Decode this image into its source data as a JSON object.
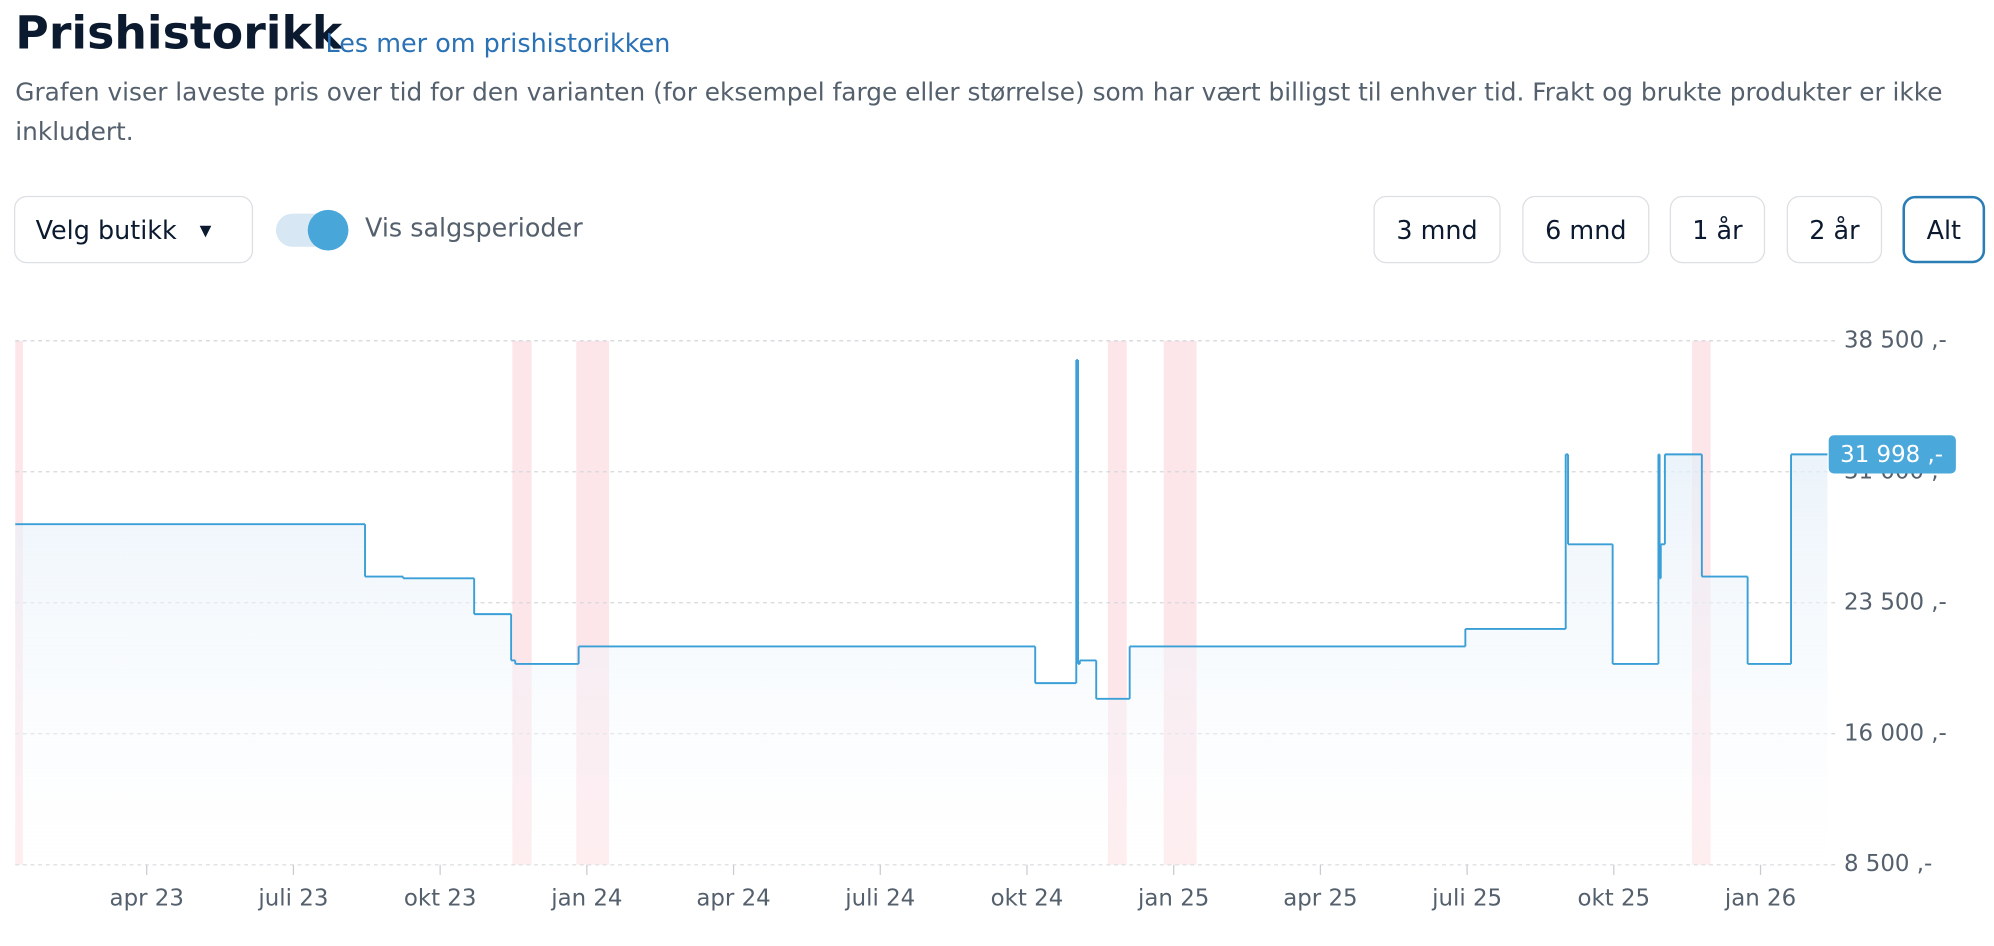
{
  "header": {
    "title": "Prishistorikk",
    "link": "Les mer om prishistorikken",
    "description": "Grafen viser laveste pris over tid for den varianten (for eksempel farge eller størrelse) som har vært billigst til enhver tid. Frakt og brukte produkter er ikke inkludert."
  },
  "controls": {
    "store_select": "Velg butikk",
    "toggle_label": "Vis salgsperioder",
    "toggle_on": true,
    "ranges": [
      "3 mnd",
      "6 mnd",
      "1 år",
      "2 år",
      "Alt"
    ],
    "active_range": 4
  },
  "chart_data": {
    "type": "step",
    "x": [
      2023.026,
      2023.622,
      2023.687,
      2023.808,
      2023.871,
      2023.878,
      2023.986,
      2024.764,
      2024.834,
      2024.837,
      2024.84,
      2024.868,
      2024.925,
      2025.497,
      2025.668,
      2025.672,
      2025.748,
      2025.826,
      2025.828,
      2025.83,
      2025.837,
      2025.9,
      2025.978,
      2026.052
    ],
    "series": [
      {
        "color": "#3a9fd6",
        "values": [
          28000,
          25000,
          24900,
          22850,
          20200,
          20000,
          21000,
          18900,
          37400,
          20000,
          20200,
          18000,
          21000,
          22000,
          31998,
          26850,
          20000,
          31998,
          24900,
          26850,
          31998,
          25000,
          20000,
          31998
        ],
        "value_labels": [
          null,
          null,
          null,
          null,
          null,
          null,
          null,
          null,
          null,
          null,
          null,
          null,
          null,
          null,
          null,
          null,
          null,
          null,
          null,
          null,
          null,
          null,
          null,
          "31 998 ,-"
        ]
      }
    ],
    "sale_periods": [
      [
        2023.026,
        2023.039
      ],
      [
        2023.873,
        2023.906
      ],
      [
        2023.982,
        2024.038
      ],
      [
        2024.888,
        2024.92
      ],
      [
        2024.983,
        2025.039
      ],
      [
        2025.883,
        2025.915
      ]
    ],
    "sale_color": "#fde6ea",
    "xlim": [
      2023.026,
      2026.114
    ],
    "xticks": [
      {
        "value": 2023.25,
        "label": "apr 23"
      },
      {
        "value": 2023.5,
        "label": "juli 23"
      },
      {
        "value": 2023.75,
        "label": "okt 23"
      },
      {
        "value": 2024,
        "label": "jan 24"
      },
      {
        "value": 2024.25,
        "label": "apr 24"
      },
      {
        "value": 2024.5,
        "label": "juli 24"
      },
      {
        "value": 2024.75,
        "label": "okt 24"
      },
      {
        "value": 2025,
        "label": "jan 25"
      },
      {
        "value": 2025.25,
        "label": "apr 25"
      },
      {
        "value": 2025.5,
        "label": "juli 25"
      },
      {
        "value": 2025.75,
        "label": "okt 25"
      },
      {
        "value": 2026,
        "label": "jan 26"
      }
    ],
    "ylim": [
      8500,
      38500
    ],
    "yticks": [
      {
        "value": 8500,
        "label": "8 500 ,-"
      },
      {
        "value": 16000,
        "label": "16 000 ,-"
      },
      {
        "value": 23500,
        "label": "23 500 ,-"
      },
      {
        "value": 31000,
        "label": "31 000 ,-"
      },
      {
        "value": 38500,
        "label": "38 500 ,-"
      }
    ],
    "grid": true
  }
}
